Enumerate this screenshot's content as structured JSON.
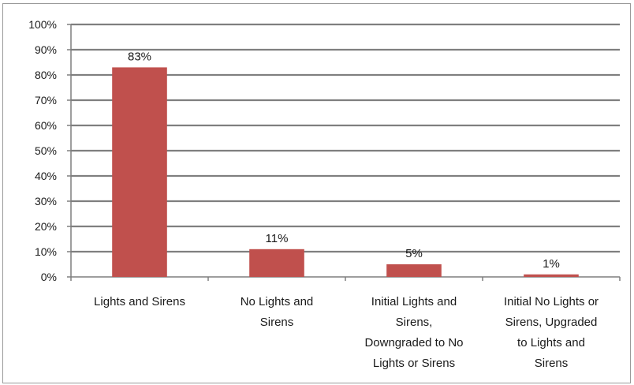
{
  "chart_data": {
    "type": "bar",
    "categories": [
      [
        "Lights and Sirens"
      ],
      [
        "No Lights and",
        "Sirens"
      ],
      [
        "Initial Lights and",
        "Sirens,",
        "Downgraded to No",
        "Lights or Sirens"
      ],
      [
        "Initial No Lights or",
        "Sirens, Upgraded",
        "to Lights and",
        "Sirens"
      ]
    ],
    "values": [
      83,
      11,
      5,
      1
    ],
    "data_labels": [
      "83%",
      "11%",
      "5%",
      "1%"
    ],
    "y_ticks": [
      "0%",
      "10%",
      "20%",
      "30%",
      "40%",
      "50%",
      "60%",
      "70%",
      "80%",
      "90%",
      "100%"
    ],
    "ylim": [
      0,
      100
    ],
    "grid": true,
    "bar_color": "#c0504d",
    "title": "",
    "xlabel": "",
    "ylabel": ""
  }
}
